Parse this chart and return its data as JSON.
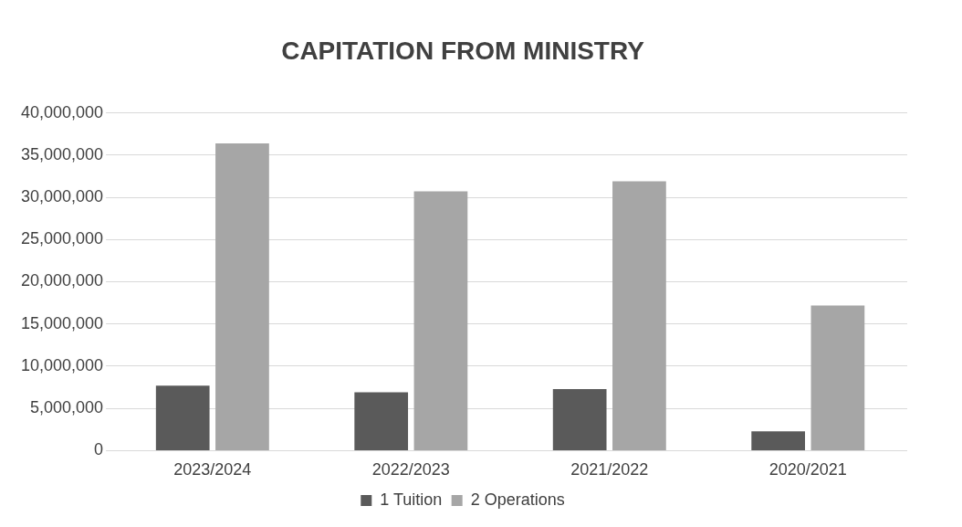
{
  "chart_data": {
    "type": "bar",
    "title": "CAPITATION FROM MINISTRY",
    "categories": [
      "2023/2024",
      "2022/2023",
      "2021/2022",
      "2020/2021"
    ],
    "series": [
      {
        "name": "1 Tuition",
        "color": "#5a5a5a",
        "values": [
          7700000,
          6900000,
          7300000,
          2300000
        ]
      },
      {
        "name": "2 Operations",
        "color": "#a6a6a6",
        "values": [
          36400000,
          30700000,
          31900000,
          17200000
        ]
      }
    ],
    "ylim": [
      0,
      40000000
    ],
    "yticks": [
      {
        "value": 0,
        "label": "0"
      },
      {
        "value": 5000000,
        "label": "5,000,000"
      },
      {
        "value": 10000000,
        "label": "10,000,000"
      },
      {
        "value": 15000000,
        "label": "15,000,000"
      },
      {
        "value": 20000000,
        "label": "20,000,000"
      },
      {
        "value": 25000000,
        "label": "25,000,000"
      },
      {
        "value": 30000000,
        "label": "30,000,000"
      },
      {
        "value": 35000000,
        "label": "35,000,000"
      },
      {
        "value": 40000000,
        "label": "40,000,000"
      }
    ],
    "grid": "y",
    "legend": "bottom"
  }
}
